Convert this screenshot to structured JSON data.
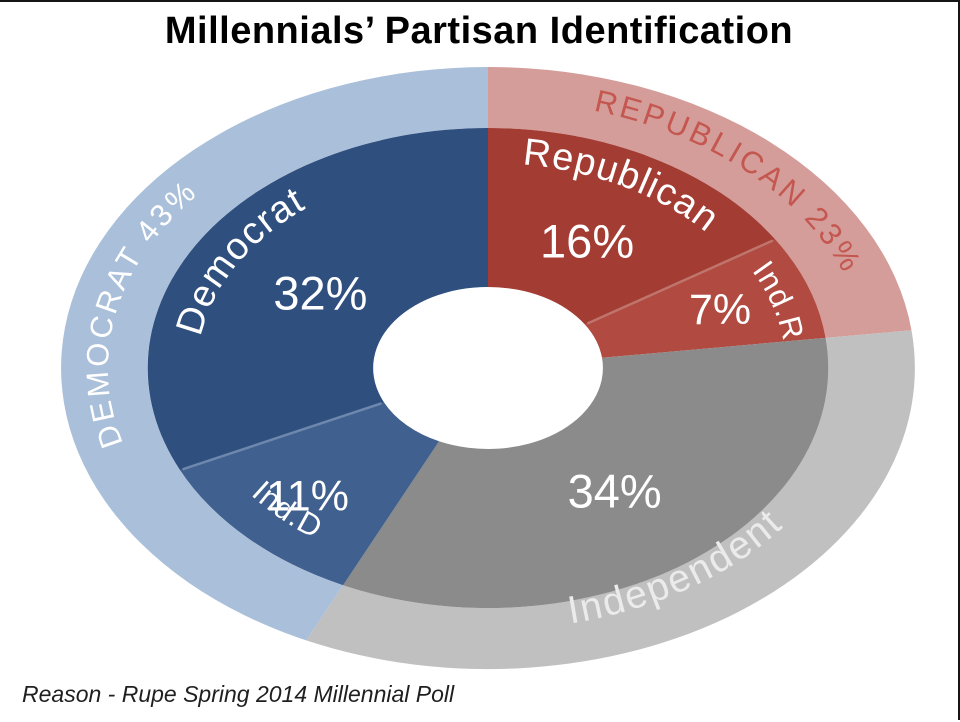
{
  "title": "Millennials’ Partisan Identification",
  "source": "Reason - Rupe Spring 2014 Millennial Poll",
  "chart_data": {
    "type": "pie",
    "subtype": "double-ring-donut",
    "title": "Millennials’ Partisan Identification",
    "units": "%",
    "direction": "clockwise",
    "start_angle_deg": 0,
    "legend_position": "none",
    "inner_ring": [
      {
        "label": "Republican",
        "value": 16,
        "color": "#a33c33",
        "text_color": "#ffffff"
      },
      {
        "label": "Ind.R",
        "value": 7,
        "color": "#b14a40",
        "text_color": "#ffffff"
      },
      {
        "label": "Independent",
        "value": 34,
        "color": "#8b8b8b",
        "text_color": "#ffffff"
      },
      {
        "label": "Ind.D",
        "value": 11,
        "color": "#40608f",
        "text_color": "#ffffff"
      },
      {
        "label": "Democrat",
        "value": 32,
        "color": "#2f4f7f",
        "text_color": "#ffffff"
      }
    ],
    "outer_ring": [
      {
        "label": "REPUBLICAN 23%",
        "group": "Republican",
        "value": 23,
        "color": "#d59d9a",
        "text_color": "#c4574f"
      },
      {
        "label": "Independent",
        "group": "Independent",
        "value": 34,
        "color": "#c0c0c0",
        "text_color": "#ebebeb"
      },
      {
        "label": "DEMOCRAT 43%",
        "group": "Democrat",
        "value": 43,
        "color": "#aabfd9",
        "text_color": "#ffffff"
      }
    ]
  }
}
